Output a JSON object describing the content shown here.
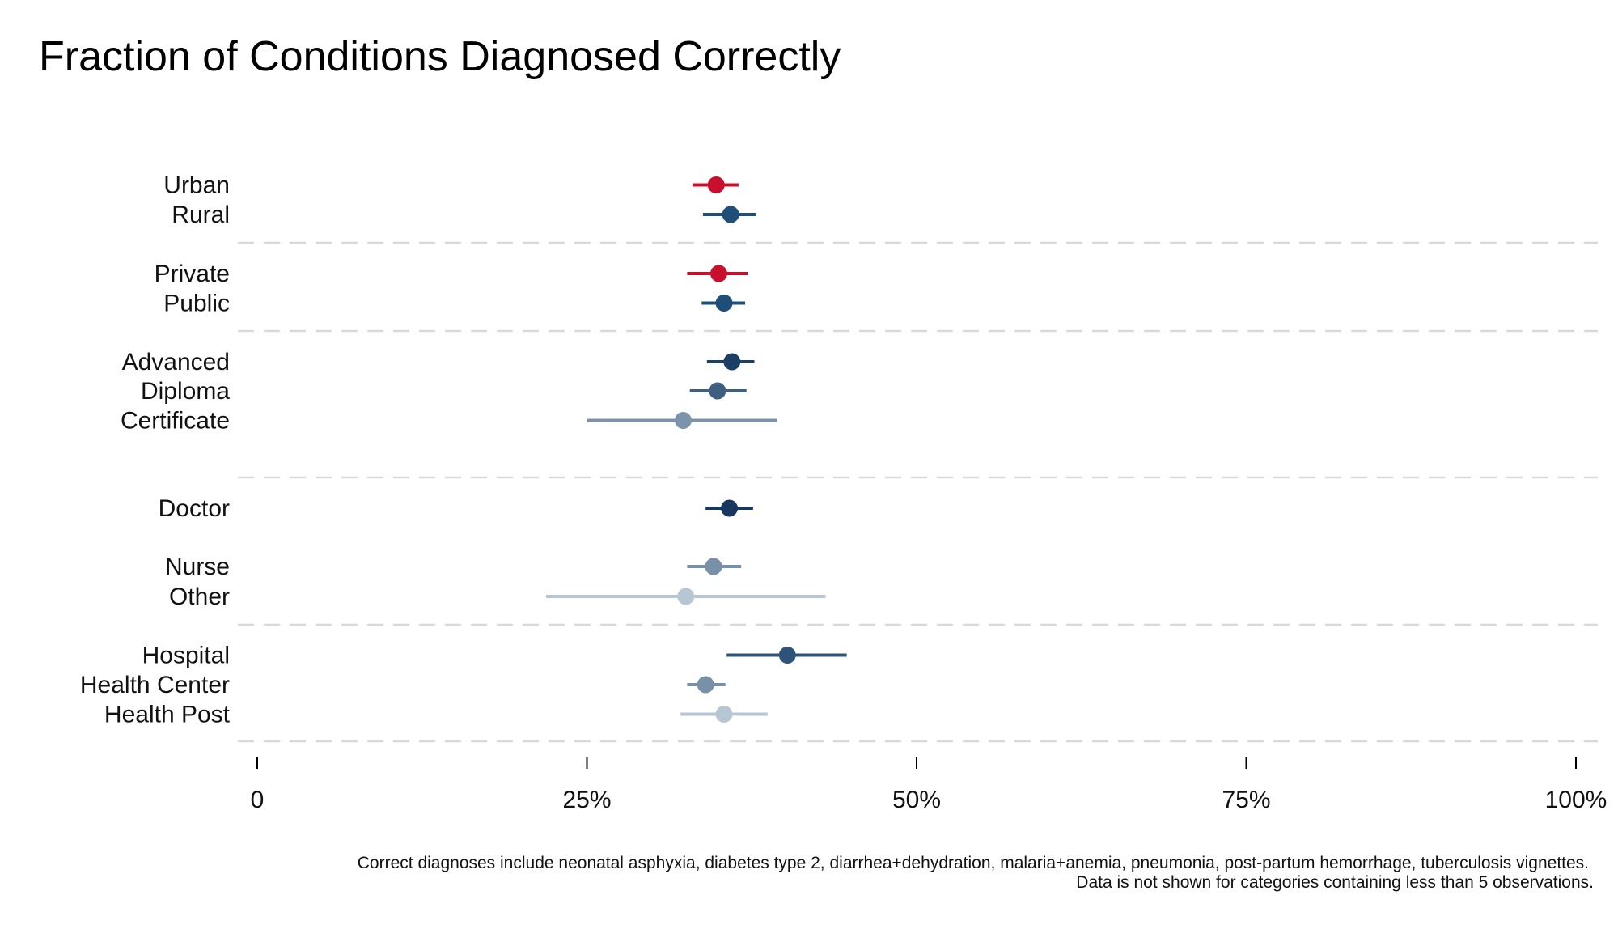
{
  "chart_data": {
    "type": "dot-range",
    "title": "Fraction of Conditions Diagnosed Correctly",
    "xlabel": "",
    "ylabel": "",
    "xlim": [
      0,
      100
    ],
    "x_ticks": [
      {
        "value": 0,
        "label": "0"
      },
      {
        "value": 25,
        "label": "25%"
      },
      {
        "value": 50,
        "label": "50%"
      },
      {
        "value": 75,
        "label": "75%"
      },
      {
        "value": 100,
        "label": "100%"
      }
    ],
    "grid": "dashed separators between groups",
    "groups": [
      {
        "items": [
          {
            "label": "Urban",
            "value": 34.8,
            "low": 33.0,
            "high": 36.5,
            "color": "#c8102e"
          },
          {
            "label": "Rural",
            "value": 35.9,
            "low": 33.8,
            "high": 37.8,
            "color": "#1f4e79"
          }
        ]
      },
      {
        "items": [
          {
            "label": "Private",
            "value": 35.0,
            "low": 32.6,
            "high": 37.2,
            "color": "#c8102e"
          },
          {
            "label": "Public",
            "value": 35.4,
            "low": 33.7,
            "high": 37.0,
            "color": "#1f4e79"
          }
        ]
      },
      {
        "items": [
          {
            "label": "Advanced",
            "value": 36.0,
            "low": 34.1,
            "high": 37.7,
            "color": "#1c3f66"
          },
          {
            "label": "Diploma",
            "value": 34.9,
            "low": 32.8,
            "high": 37.1,
            "color": "#3e5f80"
          },
          {
            "label": "Certificate",
            "value": 32.3,
            "low": 25.0,
            "high": 39.4,
            "color": "#7b93ab"
          }
        ]
      },
      {
        "items": [
          {
            "label": "Doctor",
            "value": 35.8,
            "low": 34.0,
            "high": 37.6,
            "color": "#17375e"
          },
          {
            "label": "Nurse",
            "value": 34.6,
            "low": 32.6,
            "high": 36.7,
            "color": "#7890a8"
          },
          {
            "label": "Other",
            "value": 32.5,
            "low": 21.9,
            "high": 43.1,
            "color": "#b7c6d3"
          }
        ]
      },
      {
        "items": [
          {
            "label": "Hospital",
            "value": 40.2,
            "low": 35.6,
            "high": 44.7,
            "color": "#2d5478"
          },
          {
            "label": "Health Center",
            "value": 34.0,
            "low": 32.6,
            "high": 35.5,
            "color": "#7890a8"
          },
          {
            "label": "Health Post",
            "value": 35.4,
            "low": 32.1,
            "high": 38.7,
            "color": "#b7c6d3"
          }
        ]
      }
    ],
    "notes": [
      "Correct diagnoses include neonatal asphyxia, diabetes type 2, diarrhea+dehydration, malaria+anemia, pneumonia, post-partum hemorrhage, tuberculosis vignettes.",
      "Data is not shown for categories containing less than 5 observations."
    ]
  }
}
